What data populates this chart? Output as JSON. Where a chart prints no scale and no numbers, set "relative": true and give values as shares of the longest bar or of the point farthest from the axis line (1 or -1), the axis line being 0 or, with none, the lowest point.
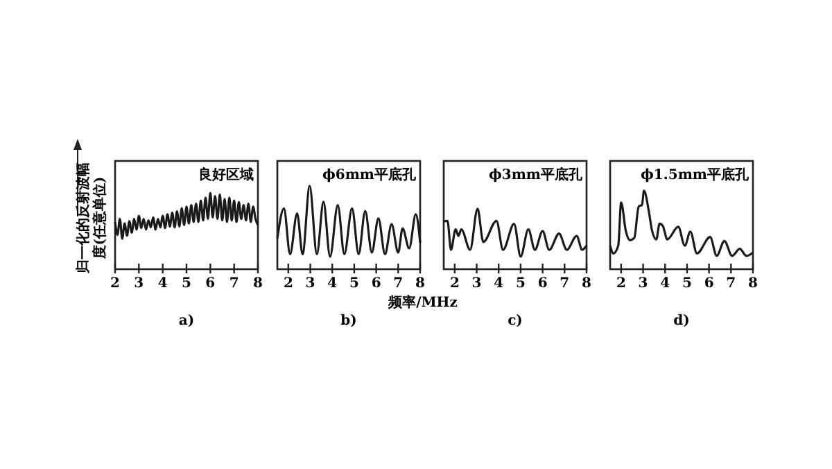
{
  "chart_data": [
    {
      "type": "line",
      "relative": true,
      "ylabel": "归一化的反射波幅度(任意单位)",
      "xlim": [
        2,
        8
      ],
      "xticks": [
        2,
        3,
        4,
        5,
        6,
        7,
        8
      ],
      "annotations": [
        "良好区域",
        "a)"
      ],
      "series": [
        {
          "color": "#1a1a1a",
          "x": [
            2.0,
            2.1,
            2.2,
            2.3,
            2.4,
            2.5,
            2.6,
            2.7,
            2.8,
            2.9,
            3.0,
            3.1,
            3.2,
            3.3,
            3.4,
            3.5,
            3.6,
            3.7,
            3.8,
            3.9,
            4.0,
            4.1,
            4.2,
            4.3,
            4.4,
            4.5,
            4.6,
            4.7,
            4.8,
            4.9,
            5.0,
            5.1,
            5.2,
            5.3,
            5.4,
            5.5,
            5.6,
            5.7,
            5.8,
            5.9,
            6.0,
            6.1,
            6.2,
            6.3,
            6.4,
            6.5,
            6.6,
            6.7,
            6.8,
            6.9,
            7.0,
            7.1,
            7.2,
            7.3,
            7.4,
            7.5,
            7.6,
            7.7,
            7.8,
            7.9,
            8.0
          ],
          "values": [
            0.62,
            0.45,
            0.66,
            0.4,
            0.6,
            0.44,
            0.63,
            0.48,
            0.66,
            0.52,
            0.7,
            0.54,
            0.66,
            0.52,
            0.64,
            0.55,
            0.68,
            0.52,
            0.66,
            0.55,
            0.7,
            0.54,
            0.72,
            0.56,
            0.74,
            0.55,
            0.76,
            0.56,
            0.8,
            0.58,
            0.82,
            0.6,
            0.84,
            0.62,
            0.86,
            0.62,
            0.9,
            0.64,
            0.94,
            0.66,
            1.0,
            0.68,
            0.96,
            0.66,
            0.98,
            0.64,
            0.92,
            0.62,
            0.94,
            0.64,
            0.9,
            0.62,
            0.88,
            0.66,
            0.84,
            0.64,
            0.86,
            0.62,
            0.82,
            0.66,
            0.58
          ]
        }
      ]
    },
    {
      "type": "line",
      "relative": true,
      "xlabel": "频率/MHz",
      "xlim": [
        1.5,
        8
      ],
      "xticks": [
        2,
        3,
        4,
        5,
        6,
        7,
        8
      ],
      "annotations": [
        "ϕ6mm平底孔",
        "b)"
      ],
      "series": [
        {
          "color": "#1a1a1a",
          "x": [
            1.5,
            1.8,
            2.08,
            2.4,
            2.65,
            2.97,
            3.3,
            3.6,
            3.9,
            4.25,
            4.55,
            4.9,
            5.2,
            5.5,
            5.8,
            6.1,
            6.4,
            6.7,
            7.0,
            7.2,
            7.5,
            7.8,
            8.0
          ],
          "values": [
            0.37,
            0.73,
            0.18,
            0.67,
            0.18,
            1.0,
            0.18,
            0.81,
            0.15,
            0.77,
            0.18,
            0.73,
            0.18,
            0.7,
            0.2,
            0.61,
            0.18,
            0.54,
            0.2,
            0.49,
            0.25,
            0.66,
            0.32
          ]
        }
      ]
    },
    {
      "type": "line",
      "relative": true,
      "xlim": [
        1.5,
        8
      ],
      "xticks": [
        2,
        3,
        4,
        5,
        6,
        7,
        8
      ],
      "annotations": [
        "ϕ3mm平底孔",
        "c)"
      ],
      "series": [
        {
          "color": "#1a1a1a",
          "x": [
            1.5,
            1.67,
            1.83,
            2.04,
            2.17,
            2.3,
            2.7,
            3.04,
            3.3,
            3.9,
            4.2,
            4.7,
            5.0,
            5.35,
            5.65,
            6.0,
            6.3,
            6.75,
            7.1,
            7.55,
            7.8,
            8.0
          ],
          "values": [
            0.79,
            0.8,
            0.32,
            0.66,
            0.55,
            0.66,
            0.32,
            1.0,
            0.45,
            0.8,
            0.32,
            0.75,
            0.21,
            0.66,
            0.32,
            0.63,
            0.32,
            0.59,
            0.32,
            0.55,
            0.32,
            0.39
          ]
        }
      ]
    },
    {
      "type": "line",
      "relative": true,
      "xlim": [
        1.5,
        8
      ],
      "xticks": [
        2,
        3,
        4,
        5,
        6,
        7,
        8
      ],
      "annotations": [
        "ϕ1.5mm平底孔",
        "d)"
      ],
      "series": [
        {
          "color": "#1a1a1a",
          "x": [
            1.5,
            1.65,
            1.87,
            2.0,
            2.22,
            2.4,
            2.6,
            2.8,
            2.95,
            3.04,
            3.26,
            3.4,
            3.6,
            3.75,
            3.9,
            4.1,
            4.6,
            4.9,
            5.15,
            5.45,
            6.05,
            6.35,
            6.7,
            7.05,
            7.4,
            7.7,
            8.0
          ],
          "values": [
            0.3,
            0.2,
            0.3,
            0.85,
            0.48,
            0.37,
            0.4,
            0.8,
            0.82,
            1.0,
            0.74,
            0.5,
            0.38,
            0.58,
            0.55,
            0.38,
            0.54,
            0.3,
            0.48,
            0.2,
            0.41,
            0.17,
            0.36,
            0.17,
            0.26,
            0.17,
            0.21
          ]
        }
      ]
    }
  ]
}
